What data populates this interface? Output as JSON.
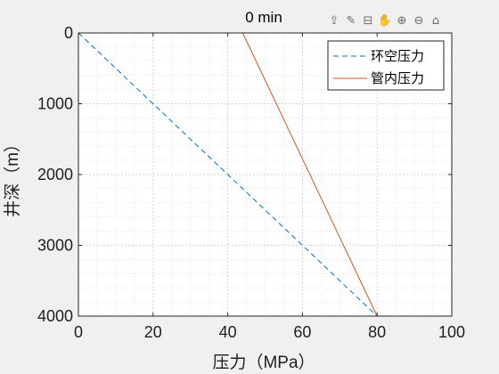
{
  "toolbar": {
    "icons": [
      "export-icon",
      "brush-icon",
      "data-tip-icon",
      "pan-hand-icon",
      "zoom-in-icon",
      "zoom-out-icon",
      "home-icon"
    ]
  },
  "colors": {
    "annulus": "#0072BD",
    "tubing": "#D95319",
    "grid": "#dcdcdc",
    "axes": "#262626",
    "plot_bg": "#ffffff",
    "figure_bg": "#f0f0f0"
  },
  "chart_data": {
    "type": "line",
    "title": "0 min",
    "xlabel": "压力（MPa）",
    "ylabel": "井深（m）",
    "xlim": [
      0,
      100
    ],
    "ylim": [
      0,
      4000
    ],
    "y_reversed": true,
    "xticks": [
      0,
      20,
      40,
      60,
      80,
      100
    ],
    "yticks": [
      0,
      1000,
      2000,
      3000,
      4000
    ],
    "grid": "major and minor",
    "legend_position": "top-right",
    "series": [
      {
        "name": "环空压力",
        "style": "dashed",
        "x": [
          0,
          80
        ],
        "y": [
          0,
          4000
        ]
      },
      {
        "name": "管内压力",
        "style": "solid",
        "x": [
          44,
          80
        ],
        "y": [
          0,
          4000
        ]
      }
    ]
  }
}
